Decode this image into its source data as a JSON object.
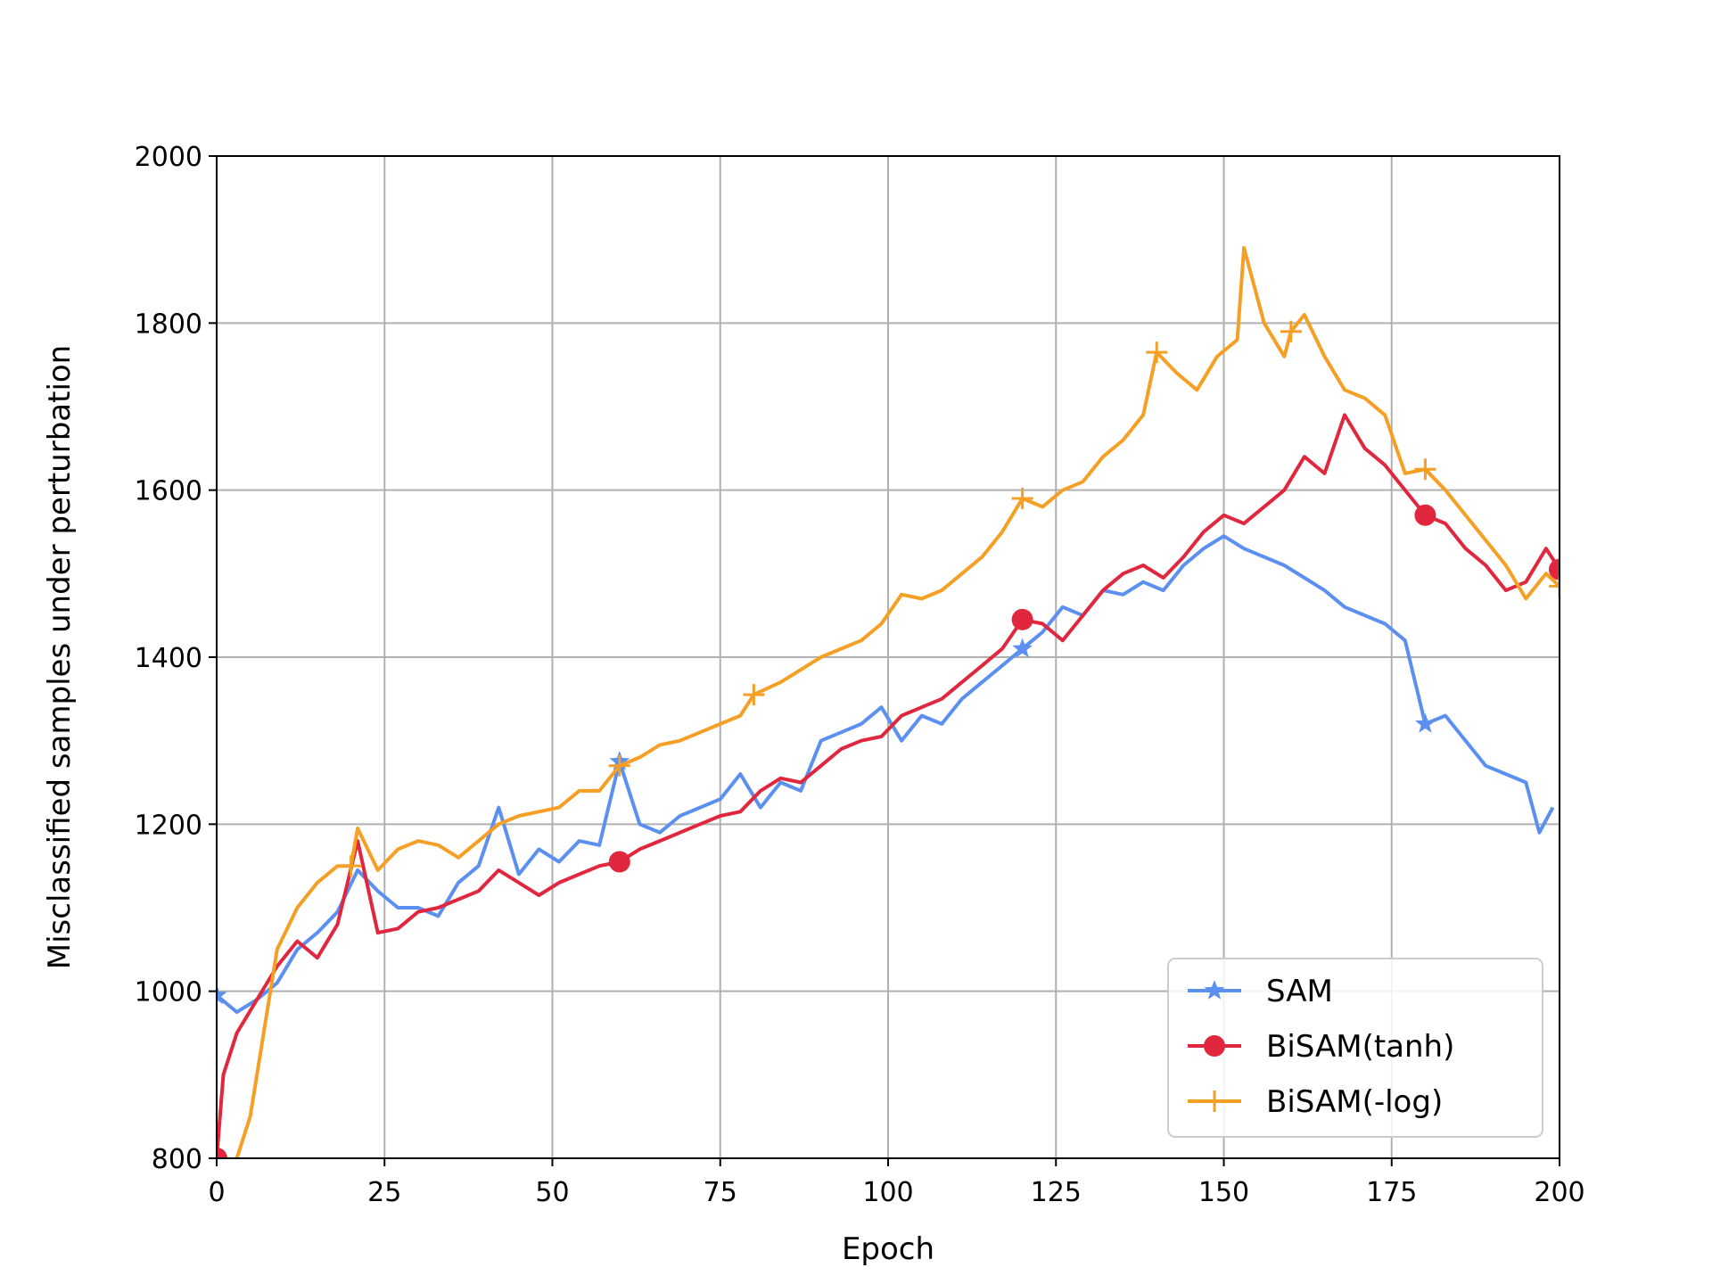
{
  "chart_data": {
    "type": "line",
    "title": "",
    "xlabel": "Epoch",
    "ylabel": "Misclassified samples under perturbation",
    "xlim": [
      0,
      200
    ],
    "ylim": [
      800,
      2000
    ],
    "xticks": [
      0,
      25,
      50,
      75,
      100,
      125,
      150,
      175,
      200
    ],
    "yticks": [
      800,
      1000,
      1200,
      1400,
      1600,
      1800,
      2000
    ],
    "grid": true,
    "legend_position": "lower-right",
    "marker_every": 20,
    "series": [
      {
        "name": "SAM",
        "color": "#5b8ff0",
        "marker": "star",
        "x": [
          0,
          3,
          6,
          9,
          12,
          15,
          18,
          21,
          24,
          27,
          30,
          33,
          36,
          39,
          42,
          45,
          48,
          51,
          54,
          57,
          60,
          63,
          66,
          69,
          72,
          75,
          78,
          81,
          84,
          87,
          90,
          93,
          96,
          99,
          102,
          105,
          108,
          111,
          114,
          117,
          120,
          123,
          126,
          129,
          132,
          135,
          138,
          141,
          144,
          147,
          150,
          153,
          156,
          159,
          162,
          165,
          168,
          171,
          174,
          177,
          180,
          183,
          186,
          189,
          192,
          195,
          197,
          199
        ],
        "values": [
          995,
          975,
          990,
          1010,
          1050,
          1070,
          1095,
          1145,
          1120,
          1100,
          1100,
          1090,
          1130,
          1150,
          1220,
          1140,
          1170,
          1155,
          1180,
          1175,
          1275,
          1200,
          1190,
          1210,
          1220,
          1230,
          1260,
          1220,
          1250,
          1240,
          1300,
          1310,
          1320,
          1340,
          1300,
          1330,
          1320,
          1350,
          1370,
          1390,
          1410,
          1430,
          1460,
          1450,
          1480,
          1475,
          1490,
          1480,
          1510,
          1530,
          1545,
          1530,
          1520,
          1510,
          1495,
          1480,
          1460,
          1450,
          1440,
          1420,
          1320,
          1330,
          1300,
          1270,
          1260,
          1250,
          1190,
          1220
        ]
      },
      {
        "name": "BiSAM(tanh)",
        "color": "#e0273d",
        "marker": "circle",
        "x": [
          0,
          1,
          3,
          6,
          9,
          12,
          15,
          18,
          21,
          24,
          27,
          30,
          33,
          36,
          39,
          42,
          45,
          48,
          51,
          54,
          57,
          60,
          63,
          66,
          69,
          72,
          75,
          78,
          81,
          84,
          87,
          90,
          93,
          96,
          99,
          102,
          105,
          108,
          111,
          114,
          117,
          120,
          123,
          126,
          129,
          132,
          135,
          138,
          141,
          144,
          147,
          150,
          153,
          156,
          159,
          162,
          165,
          168,
          171,
          174,
          177,
          180,
          183,
          186,
          189,
          192,
          195,
          198,
          200
        ],
        "values": [
          800,
          900,
          950,
          990,
          1030,
          1060,
          1040,
          1080,
          1180,
          1070,
          1075,
          1095,
          1100,
          1110,
          1120,
          1145,
          1130,
          1115,
          1130,
          1140,
          1150,
          1155,
          1170,
          1180,
          1190,
          1200,
          1210,
          1215,
          1240,
          1255,
          1250,
          1270,
          1290,
          1300,
          1305,
          1330,
          1340,
          1350,
          1370,
          1390,
          1410,
          1445,
          1440,
          1420,
          1450,
          1480,
          1500,
          1510,
          1495,
          1520,
          1550,
          1570,
          1560,
          1580,
          1600,
          1640,
          1620,
          1690,
          1650,
          1630,
          1600,
          1570,
          1560,
          1530,
          1510,
          1480,
          1490,
          1530,
          1505
        ]
      },
      {
        "name": "BiSAM(-log)",
        "color": "#f59f25",
        "marker": "plus",
        "x": [
          0,
          2,
          3,
          5,
          7,
          9,
          12,
          15,
          18,
          20,
          21,
          24,
          27,
          30,
          33,
          36,
          39,
          42,
          45,
          48,
          51,
          54,
          57,
          60,
          63,
          66,
          69,
          72,
          75,
          78,
          80,
          84,
          87,
          90,
          93,
          96,
          99,
          102,
          105,
          108,
          111,
          114,
          117,
          120,
          123,
          126,
          129,
          132,
          135,
          138,
          140,
          143,
          146,
          149,
          152,
          153,
          156,
          159,
          160,
          162,
          165,
          168,
          171,
          174,
          177,
          180,
          183,
          186,
          189,
          192,
          195,
          198,
          200
        ],
        "values": [
          760,
          780,
          800,
          850,
          950,
          1050,
          1100,
          1130,
          1150,
          1150,
          1195,
          1145,
          1170,
          1180,
          1175,
          1160,
          1180,
          1200,
          1210,
          1215,
          1220,
          1240,
          1240,
          1270,
          1280,
          1295,
          1300,
          1310,
          1320,
          1330,
          1355,
          1370,
          1385,
          1400,
          1410,
          1420,
          1440,
          1475,
          1470,
          1480,
          1500,
          1520,
          1550,
          1590,
          1580,
          1600,
          1610,
          1640,
          1660,
          1690,
          1765,
          1740,
          1720,
          1760,
          1780,
          1890,
          1800,
          1760,
          1790,
          1810,
          1760,
          1720,
          1710,
          1690,
          1620,
          1625,
          1600,
          1570,
          1540,
          1510,
          1470,
          1500,
          1485
        ]
      }
    ]
  }
}
